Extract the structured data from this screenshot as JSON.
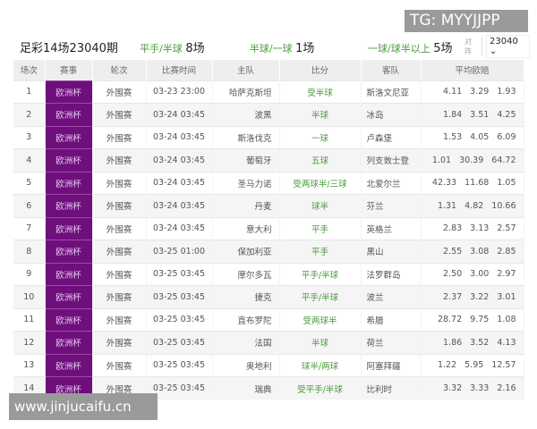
{
  "header": {
    "title": "足彩14场23040期",
    "stats": [
      {
        "label": "平手/半球",
        "count": "8场"
      },
      {
        "label": "半球/一球",
        "count": "1场"
      },
      {
        "label": "一球/球半以上",
        "count": "5场"
      }
    ],
    "select_label": "对阵",
    "select_value": "23040 ⌄"
  },
  "columns": [
    "场次",
    "赛事",
    "轮次",
    "比赛时间",
    "主队",
    "比分",
    "客队",
    "平均欧赔"
  ],
  "rows": [
    [
      "1",
      "欧洲杯",
      "外围赛",
      "03-23 23:00",
      "哈萨克斯坦",
      "受半球",
      "斯洛文尼亚",
      "4.11 3.29 1.93"
    ],
    [
      "2",
      "欧洲杯",
      "外围赛",
      "03-24 03:45",
      "波黑",
      "半球",
      "冰岛",
      "1.84 3.51 4.25"
    ],
    [
      "3",
      "欧洲杯",
      "外围赛",
      "03-24 03:45",
      "斯洛伐克",
      "一球",
      "卢森堡",
      "1.53 4.05 6.09"
    ],
    [
      "4",
      "欧洲杯",
      "外围赛",
      "03-24 03:45",
      "葡萄牙",
      "五球",
      "列支敦士登",
      "1.01 30.39 64.72"
    ],
    [
      "5",
      "欧洲杯",
      "外围赛",
      "03-24 03:45",
      "圣马力诺",
      "受两球半/三球",
      "北爱尔兰",
      "42.33 11.68 1.05"
    ],
    [
      "6",
      "欧洲杯",
      "外围赛",
      "03-24 03:45",
      "丹麦",
      "球半",
      "芬兰",
      "1.31 4.82 10.66"
    ],
    [
      "7",
      "欧洲杯",
      "外围赛",
      "03-24 03:45",
      "意大利",
      "平手",
      "英格兰",
      "2.83 3.13 2.57"
    ],
    [
      "8",
      "欧洲杯",
      "外围赛",
      "03-25 01:00",
      "保加利亚",
      "平手",
      "黑山",
      "2.55 3.08 2.85"
    ],
    [
      "9",
      "欧洲杯",
      "外围赛",
      "03-25 03:45",
      "摩尔多瓦",
      "平手/半球",
      "法罗群岛",
      "2.50 3.00 2.97"
    ],
    [
      "10",
      "欧洲杯",
      "外围赛",
      "03-25 03:45",
      "捷克",
      "平手/半球",
      "波兰",
      "2.37 3.22 3.01"
    ],
    [
      "11",
      "欧洲杯",
      "外围赛",
      "03-25 03:45",
      "直布罗陀",
      "受两球半",
      "希腊",
      "28.72 9.75 1.08"
    ],
    [
      "12",
      "欧洲杯",
      "外围赛",
      "03-25 03:45",
      "法国",
      "半球",
      "荷兰",
      "1.86 3.52 4.13"
    ],
    [
      "13",
      "欧洲杯",
      "外围赛",
      "03-25 03:45",
      "奥地利",
      "球半/两球",
      "阿塞拜疆",
      "1.22 5.95 12.57"
    ],
    [
      "14",
      "欧洲杯",
      "外围赛",
      "03-25 03:45",
      "瑞典",
      "受平手/半球",
      "比利时",
      "3.32 3.33 2.16"
    ]
  ],
  "watermarks": {
    "top": "TG: MYYJJPP",
    "bottom": "www.jinjucaifu.cn"
  },
  "colors": {
    "event": "#6e0f7c",
    "handicap": "#4a9a3c"
  }
}
